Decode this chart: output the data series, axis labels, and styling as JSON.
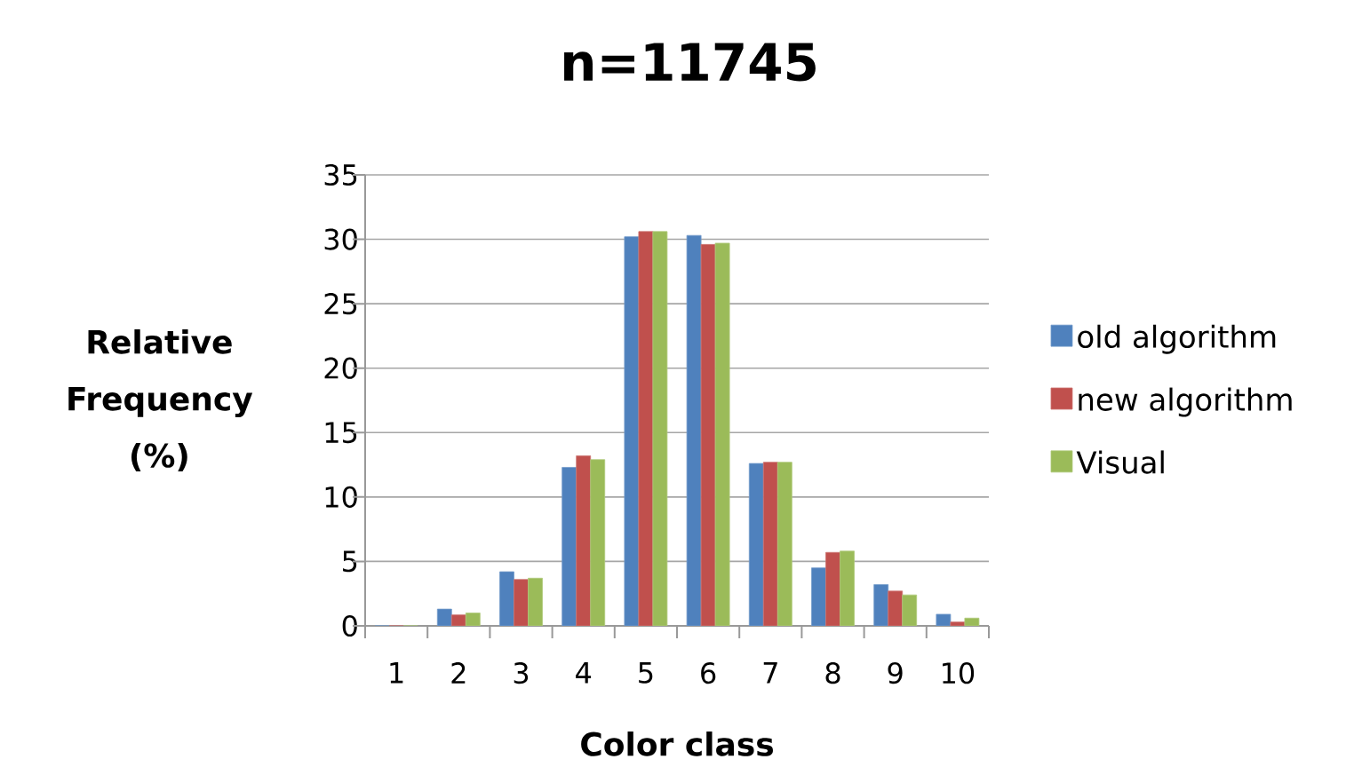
{
  "chart_data": {
    "type": "bar",
    "title": "n=11745",
    "xlabel": "Color class",
    "ylabel": "Relative Frequency (%)",
    "categories": [
      "1",
      "2",
      "3",
      "4",
      "5",
      "6",
      "7",
      "8",
      "9",
      "10"
    ],
    "series": [
      {
        "name": "old algorithm",
        "color": "#4f81bd",
        "values": [
          0,
          1.3,
          4.2,
          12.3,
          30.2,
          30.3,
          12.6,
          4.5,
          3.2,
          0.9
        ]
      },
      {
        "name": "new algorithm",
        "color": "#c0504d",
        "values": [
          0,
          0.85,
          3.6,
          13.2,
          30.6,
          29.6,
          12.7,
          5.7,
          2.7,
          0.3
        ]
      },
      {
        "name": "Visual",
        "color": "#9bbb59",
        "values": [
          0,
          1.0,
          3.7,
          12.9,
          30.6,
          29.7,
          12.7,
          5.8,
          2.4,
          0.6
        ]
      }
    ],
    "ylim": [
      0,
      35
    ],
    "yticks": [
      0,
      5,
      10,
      15,
      20,
      25,
      30,
      35
    ],
    "grid": "y",
    "legend": "right"
  }
}
